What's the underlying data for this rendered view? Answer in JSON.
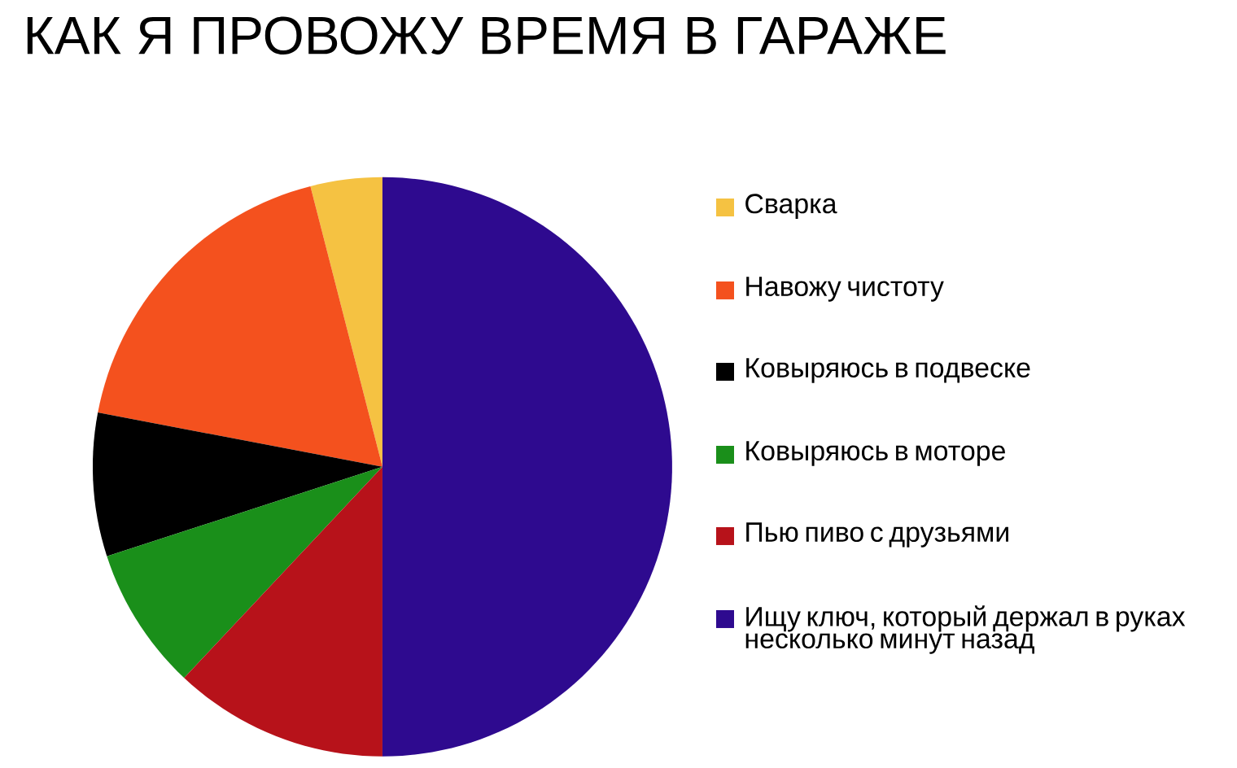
{
  "chart_data": {
    "type": "pie",
    "title": "КАК Я ПРОВОЖУ ВРЕМЯ В ГАРАЖЕ",
    "categories": [
      "Сварка",
      "Навожу чистоту",
      "Ковыряюсь в подвеске",
      "Ковыряюсь в моторе",
      "Пью пиво с друзьями",
      "Ищу ключ, который держал в руках несколько минут назад"
    ],
    "values": [
      4,
      18,
      8,
      8,
      12,
      50
    ],
    "colors": [
      "#f5c242",
      "#f4511e",
      "#000000",
      "#1a8f1a",
      "#b7121a",
      "#2e0a8f"
    ],
    "legend": "right"
  }
}
